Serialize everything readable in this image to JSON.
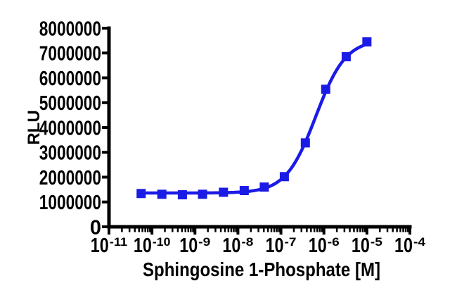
{
  "figure": {
    "background": "#ffffff",
    "axis_color": "#000000",
    "text_color": "#000000"
  },
  "chart_data": {
    "type": "scatter",
    "title": "",
    "xlabel": "Sphingosine 1-Phosphate [M]",
    "ylabel": "RLU",
    "x_scale": "log",
    "xlim": [
      1e-11,
      0.0001
    ],
    "x_tick_exponents": [
      -11,
      -10,
      -9,
      -8,
      -7,
      -6,
      -5,
      -4
    ],
    "x_minor_ticks": true,
    "ylim": [
      0,
      8000000
    ],
    "y_ticks": [
      0,
      1000000,
      2000000,
      3000000,
      4000000,
      5000000,
      6000000,
      7000000,
      8000000
    ],
    "grid": false,
    "legend": null,
    "series": [
      {
        "marker": "square",
        "color": "#1b1be6",
        "line_color": "#1b1be6",
        "x": [
          5.6e-11,
          1.7e-10,
          5.1e-10,
          1.5e-09,
          4.6e-09,
          1.4e-08,
          4.1e-08,
          1.2e-07,
          3.7e-07,
          1.1e-06,
          3.3e-06,
          1e-05
        ],
        "y": [
          1340000,
          1310000,
          1290000,
          1310000,
          1390000,
          1460000,
          1600000,
          2020000,
          3380000,
          5540000,
          6850000,
          7450000
        ],
        "fit": {
          "model": "4PL",
          "bottom": 1360000,
          "top": 7550000,
          "ec50": 6.5e-07,
          "hill": 1.25
        }
      }
    ]
  }
}
